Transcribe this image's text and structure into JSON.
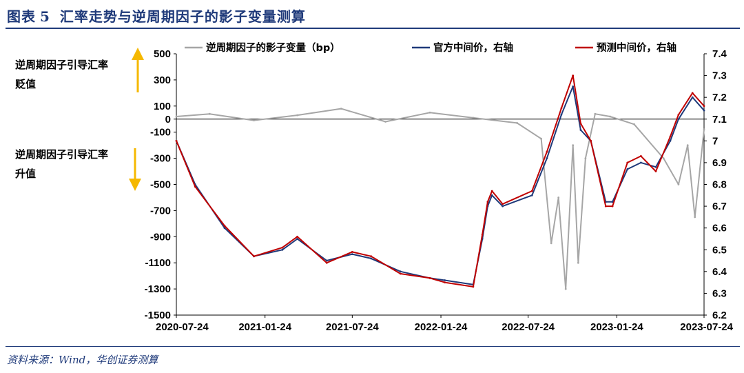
{
  "header": {
    "label": "图表",
    "number": "5",
    "title": "汇率走势与逆周期因子的影子变量测算"
  },
  "notes": {
    "up": [
      "逆周期因子引导汇率",
      "贬值"
    ],
    "down": [
      "逆周期因子引导汇率",
      "升值"
    ]
  },
  "source": "资料来源：Wind，华创证券测算",
  "colors": {
    "bg": "#ffffff",
    "header": "#1f3a7a",
    "shadow": "#a6a6a6",
    "official": "#1f3a7a",
    "forecast": "#c00000",
    "arrow": "#f5b800"
  },
  "chart_data": {
    "type": "line",
    "xlabel": "",
    "x_ticks": [
      "2020-07-24",
      "2021-01-24",
      "2021-07-24",
      "2022-01-24",
      "2022-07-24",
      "2023-01-24",
      "2023-07-24"
    ],
    "x_range": [
      "2020-07-24",
      "2023-07-24"
    ],
    "ylim_left": [
      -1500,
      500
    ],
    "y_ticks_left": [
      "500",
      "300",
      "100",
      "0",
      "-100",
      "-300",
      "-500",
      "-700",
      "-900",
      "-1100",
      "-1300",
      "-1500"
    ],
    "ylim_right": [
      6.2,
      7.4
    ],
    "y_ticks_right": [
      "7.4",
      "7.3",
      "7.2",
      "7.1",
      "7",
      "6.9",
      "6.8",
      "6.7",
      "6.6",
      "6.5",
      "6.4",
      "6.3",
      "6.2"
    ],
    "legend": [
      "逆周期因子的影子变量（bp）",
      "官方中间价，右轴",
      "预测中间价，右轴"
    ],
    "series": [
      {
        "name": "逆周期因子的影子变量（bp）",
        "axis": "left",
        "x": [
          "2020-07-24",
          "2020-10-01",
          "2021-01-01",
          "2021-04-01",
          "2021-07-01",
          "2021-10-01",
          "2022-01-01",
          "2022-04-01",
          "2022-07-01",
          "2022-08-20",
          "2022-09-10",
          "2022-09-25",
          "2022-10-10",
          "2022-10-25",
          "2022-11-05",
          "2022-11-20",
          "2022-12-10",
          "2023-01-10",
          "2023-03-01",
          "2023-05-01",
          "2023-06-01",
          "2023-06-20",
          "2023-07-05",
          "2023-07-24"
        ],
        "values": [
          20,
          40,
          -10,
          30,
          80,
          -20,
          50,
          10,
          -30,
          -150,
          -950,
          -600,
          -1300,
          -200,
          -1100,
          -300,
          40,
          20,
          -40,
          -300,
          -500,
          -200,
          -750,
          -80
        ]
      },
      {
        "name": "官方中间价，右轴",
        "axis": "right",
        "x": [
          "2020-07-24",
          "2020-09-01",
          "2020-11-01",
          "2021-01-01",
          "2021-03-01",
          "2021-04-01",
          "2021-06-01",
          "2021-07-24",
          "2021-09-01",
          "2021-11-01",
          "2022-01-01",
          "2022-02-01",
          "2022-04-01",
          "2022-04-20",
          "2022-05-01",
          "2022-05-10",
          "2022-06-01",
          "2022-08-01",
          "2022-09-01",
          "2022-10-01",
          "2022-10-25",
          "2022-11-10",
          "2022-12-01",
          "2023-01-01",
          "2023-01-15",
          "2023-02-15",
          "2023-03-15",
          "2023-04-15",
          "2023-05-15",
          "2023-06-01",
          "2023-06-30",
          "2023-07-24"
        ],
        "values": [
          7.0,
          6.8,
          6.6,
          6.47,
          6.5,
          6.55,
          6.45,
          6.48,
          6.46,
          6.4,
          6.37,
          6.36,
          6.34,
          6.55,
          6.7,
          6.75,
          6.7,
          6.75,
          6.92,
          7.12,
          7.25,
          7.05,
          7.0,
          6.72,
          6.72,
          6.87,
          6.9,
          6.88,
          7.0,
          7.1,
          7.2,
          7.14
        ]
      },
      {
        "name": "预测中间价，右轴",
        "axis": "right",
        "x": [
          "2020-07-24",
          "2020-09-01",
          "2020-11-01",
          "2021-01-01",
          "2021-03-01",
          "2021-04-01",
          "2021-06-01",
          "2021-07-24",
          "2021-09-01",
          "2021-11-01",
          "2022-01-01",
          "2022-02-01",
          "2022-04-01",
          "2022-04-20",
          "2022-05-01",
          "2022-05-10",
          "2022-06-01",
          "2022-08-01",
          "2022-09-01",
          "2022-10-01",
          "2022-10-25",
          "2022-11-10",
          "2022-12-01",
          "2023-01-01",
          "2023-01-15",
          "2023-02-15",
          "2023-03-15",
          "2023-04-15",
          "2023-05-15",
          "2023-06-01",
          "2023-06-30",
          "2023-07-24"
        ],
        "values": [
          7.0,
          6.79,
          6.61,
          6.47,
          6.51,
          6.56,
          6.44,
          6.49,
          6.47,
          6.39,
          6.37,
          6.35,
          6.33,
          6.57,
          6.72,
          6.77,
          6.71,
          6.77,
          6.95,
          7.15,
          7.3,
          7.08,
          7.0,
          6.7,
          6.7,
          6.9,
          6.93,
          6.86,
          7.02,
          7.12,
          7.22,
          7.16
        ]
      }
    ]
  }
}
